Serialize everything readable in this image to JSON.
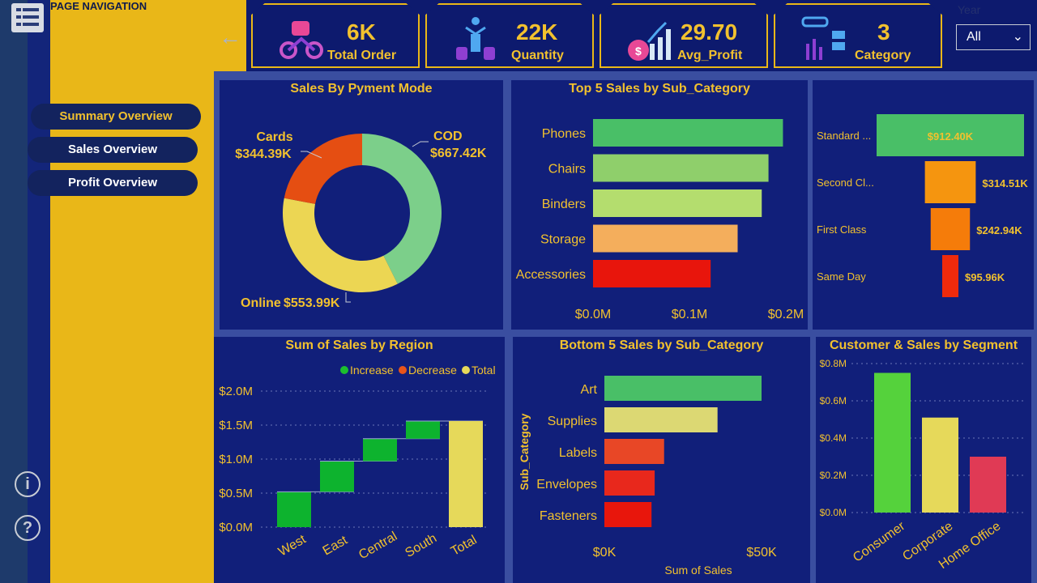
{
  "nav": {
    "title": "PAGE NAVIGATION",
    "buttons": [
      "Summary Overview",
      "Sales Overview",
      "Profit Overview"
    ]
  },
  "kpis": [
    {
      "value": "6K",
      "label": "Total Order",
      "icon": "motorbike-delivery-icon"
    },
    {
      "value": "22K",
      "label": "Quantity",
      "icon": "quantity-person-coins-icon"
    },
    {
      "value": "29.70",
      "label": "Avg_Profit",
      "icon": "money-bag-growth-icon"
    },
    {
      "value": "3",
      "label": "Category",
      "icon": "category-grid-icon"
    }
  ],
  "slicer": {
    "label": "Year",
    "value": "All"
  },
  "colors": {
    "accent": "#f2c12e",
    "panel": "#111f7a",
    "nav_bg": "#e9b718"
  },
  "charts": {
    "payment": {
      "title": "Sales By Pyment Mode",
      "labels": [
        {
          "name": "COD",
          "value": "$667.42K"
        },
        {
          "name": "Cards",
          "value": "$344.39K"
        },
        {
          "name": "Online",
          "value": "$553.99K"
        }
      ]
    },
    "top5": {
      "title": "Top 5 Sales by Sub_Category",
      "ticks": [
        "$0.0M",
        "$0.1M",
        "$0.2M"
      ]
    },
    "ship": {
      "title": "",
      "labels": [
        "Standard ...",
        "Second Cl...",
        "First Class",
        "Same Day"
      ],
      "values": [
        "$912.40K",
        "$314.51K",
        "$242.94K",
        "$95.96K"
      ]
    },
    "region": {
      "title": "Sum of Sales by Region",
      "legend": [
        "Increase",
        "Decrease",
        "Total"
      ],
      "ticks": [
        "$2.0M",
        "$1.5M",
        "$1.0M",
        "$0.5M",
        "$0.0M"
      ]
    },
    "bottom5": {
      "title": "Bottom 5 Sales by Sub_Category",
      "ylabel": "Sub_Category",
      "xlabel": "Sum of Sales",
      "ticks": [
        "$0K",
        "$50K"
      ]
    },
    "segment": {
      "title": "Customer & Sales by Segment",
      "ticks": [
        "$0.8M",
        "$0.6M",
        "$0.4M",
        "$0.2M",
        "$0.0M"
      ]
    }
  },
  "chart_data": [
    {
      "type": "pie",
      "title": "Sales By Pyment Mode",
      "categories": [
        "COD",
        "Online",
        "Cards"
      ],
      "values": [
        667.42,
        553.99,
        344.39
      ],
      "colors": [
        "#7ccf8a",
        "#ecd653",
        "#e54e12"
      ]
    },
    {
      "type": "bar",
      "title": "Top 5 Sales by Sub_Category",
      "categories": [
        "Phones",
        "Chairs",
        "Binders",
        "Storage",
        "Accessories"
      ],
      "values": [
        0.197,
        0.182,
        0.175,
        0.15,
        0.122
      ],
      "xlim": [
        0,
        0.2
      ],
      "colors": [
        "#49bf67",
        "#8fcf6b",
        "#b4dd6e",
        "#f4ae5c",
        "#e8150c"
      ]
    },
    {
      "type": "bar",
      "title": "",
      "categories": [
        "Standard ...",
        "Second Cl...",
        "First Class",
        "Same Day"
      ],
      "values": [
        912.4,
        314.51,
        242.94,
        95.96
      ],
      "colors": [
        "#49bf67",
        "#f5950f",
        "#f57c0a",
        "#ee2a0c"
      ]
    },
    {
      "type": "bar",
      "title": "Sum of Sales by Region",
      "categories": [
        "West",
        "East",
        "Central",
        "South",
        "Total"
      ],
      "values": [
        0.52,
        0.45,
        0.33,
        0.26,
        1.56
      ],
      "ylim": [
        0,
        2.0
      ],
      "series": [
        {
          "name": "Increase"
        },
        {
          "name": "Decrease"
        },
        {
          "name": "Total"
        }
      ]
    },
    {
      "type": "bar",
      "title": "Bottom 5 Sales by Sub_Category",
      "categories": [
        "Art",
        "Supplies",
        "Labels",
        "Envelopes",
        "Fasteners"
      ],
      "values": [
        50.0,
        36.0,
        19.0,
        16.0,
        15.0
      ],
      "xlim": [
        0,
        50
      ],
      "xlabel": "Sum of Sales",
      "ylabel": "Sub_Category",
      "colors": [
        "#49bf67",
        "#dcd873",
        "#e84726",
        "#e8281c",
        "#e8160c"
      ]
    },
    {
      "type": "bar",
      "title": "Customer & Sales by Segment",
      "categories": [
        "Consumer",
        "Corporate",
        "Home Office"
      ],
      "values": [
        0.75,
        0.51,
        0.3
      ],
      "ylim": [
        0,
        0.8
      ],
      "colors": [
        "#55d23c",
        "#e6d95a",
        "#e03a55"
      ]
    }
  ]
}
